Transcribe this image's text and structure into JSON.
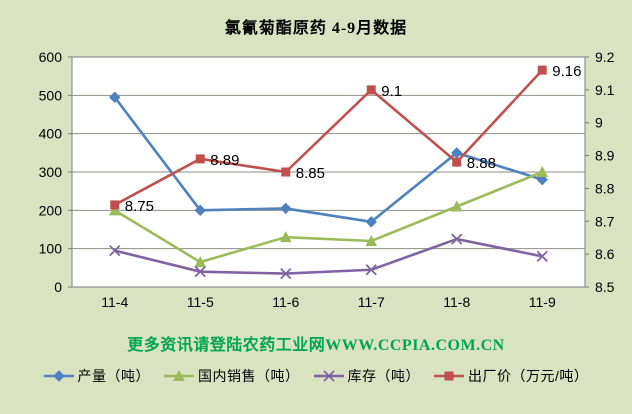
{
  "title": "氯氰菊酯原药 4-9月数据",
  "footer": {
    "promo": "更多资讯请登陆农药工业网WWW.CCPIA.COM.CN"
  },
  "colors": {
    "background": "#d9e2c1",
    "plot_background": "#ffffff",
    "plot_border": "#7f7f7f",
    "gridline": "#8e8e86",
    "axis_text": "#000000",
    "promo_green": "#00a550",
    "series_blue": "#4f81bd",
    "series_green": "#9bbb59",
    "series_purple": "#8064a2",
    "series_red": "#c0504d"
  },
  "chart_data": {
    "type": "line",
    "title": "氯氰菊酯原药 4-9月数据",
    "categories": [
      "11-4",
      "11-5",
      "11-6",
      "11-7",
      "11-8",
      "11-9"
    ],
    "series": [
      {
        "name": "产量（吨）",
        "axis": "left",
        "color": "#4f81bd",
        "marker": "diamond",
        "values": [
          495,
          200,
          205,
          170,
          350,
          280
        ]
      },
      {
        "name": "国内销售（吨）",
        "axis": "left",
        "color": "#9bbb59",
        "marker": "triangle",
        "values": [
          200,
          65,
          130,
          120,
          210,
          300
        ]
      },
      {
        "name": "库存（吨）",
        "axis": "left",
        "color": "#8064a2",
        "marker": "x",
        "values": [
          95,
          40,
          35,
          45,
          125,
          80
        ]
      },
      {
        "name": "出厂价（万元/吨）",
        "axis": "right",
        "color": "#c0504d",
        "marker": "square",
        "values": [
          8.75,
          8.89,
          8.85,
          9.1,
          8.88,
          9.16
        ],
        "data_labels": [
          "8.75",
          "8.89",
          "8.85",
          "9.1",
          "8.88",
          "9.16"
        ]
      }
    ],
    "left_axis": {
      "min": 0,
      "max": 600,
      "step": 100,
      "ticks": [
        "0",
        "100",
        "200",
        "300",
        "400",
        "500",
        "600"
      ]
    },
    "right_axis": {
      "min": 8.5,
      "max": 9.2,
      "step": 0.1,
      "ticks": [
        "8.5",
        "8.6",
        "8.7",
        "8.8",
        "8.9",
        "9",
        "9.1",
        "9.2"
      ]
    },
    "grid": true,
    "legend_position": "bottom"
  }
}
